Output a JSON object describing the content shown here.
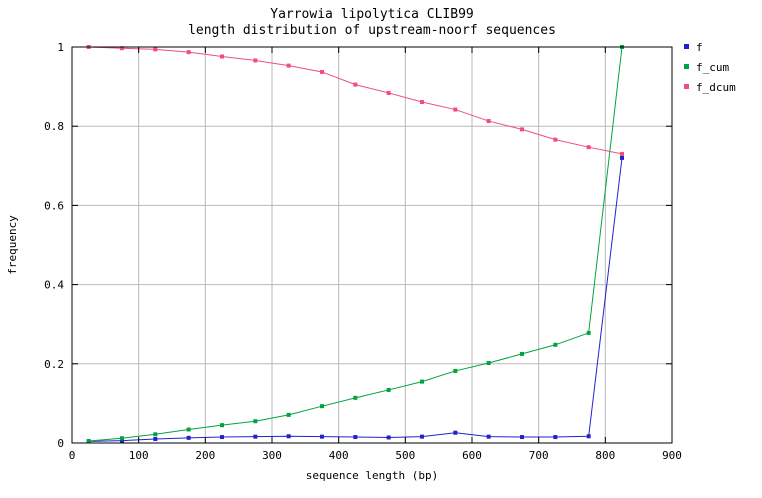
{
  "chart_data": {
    "type": "line",
    "title": "Yarrowia lipolytica CLIB99",
    "subtitle": "length distribution of upstream-noorf sequences",
    "xlabel": "sequence length (bp)",
    "ylabel": "frequency",
    "xlim": [
      0,
      900
    ],
    "ylim": [
      0,
      1
    ],
    "x_ticks": [
      0,
      100,
      200,
      300,
      400,
      500,
      600,
      700,
      800,
      900
    ],
    "y_ticks": [
      0,
      0.2,
      0.4,
      0.6,
      0.8,
      1
    ],
    "grid": true,
    "legend_position": "outside-top-right",
    "grid_color": "#b9b9b9",
    "border_color": "#000000",
    "marker_shape": "square",
    "x": [
      25,
      75,
      125,
      175,
      225,
      275,
      325,
      375,
      425,
      475,
      525,
      575,
      625,
      675,
      725,
      775,
      825
    ],
    "series": [
      {
        "name": "f",
        "color": "#2222cc",
        "values": [
          0.004,
          0.006,
          0.01,
          0.013,
          0.015,
          0.016,
          0.017,
          0.016,
          0.015,
          0.014,
          0.016,
          0.026,
          0.016,
          0.015,
          0.015,
          0.017,
          0.72
        ]
      },
      {
        "name": "f_cum",
        "color": "#00a342",
        "values": [
          0.005,
          0.012,
          0.022,
          0.034,
          0.045,
          0.055,
          0.071,
          0.093,
          0.114,
          0.134,
          0.155,
          0.182,
          0.202,
          0.225,
          0.248,
          0.278,
          1.0
        ]
      },
      {
        "name": "f_dcum",
        "color": "#f24d7d",
        "values": [
          1.0,
          0.997,
          0.994,
          0.987,
          0.976,
          0.966,
          0.953,
          0.937,
          0.905,
          0.884,
          0.861,
          0.842,
          0.813,
          0.792,
          0.766,
          0.747,
          0.73
        ]
      }
    ]
  }
}
